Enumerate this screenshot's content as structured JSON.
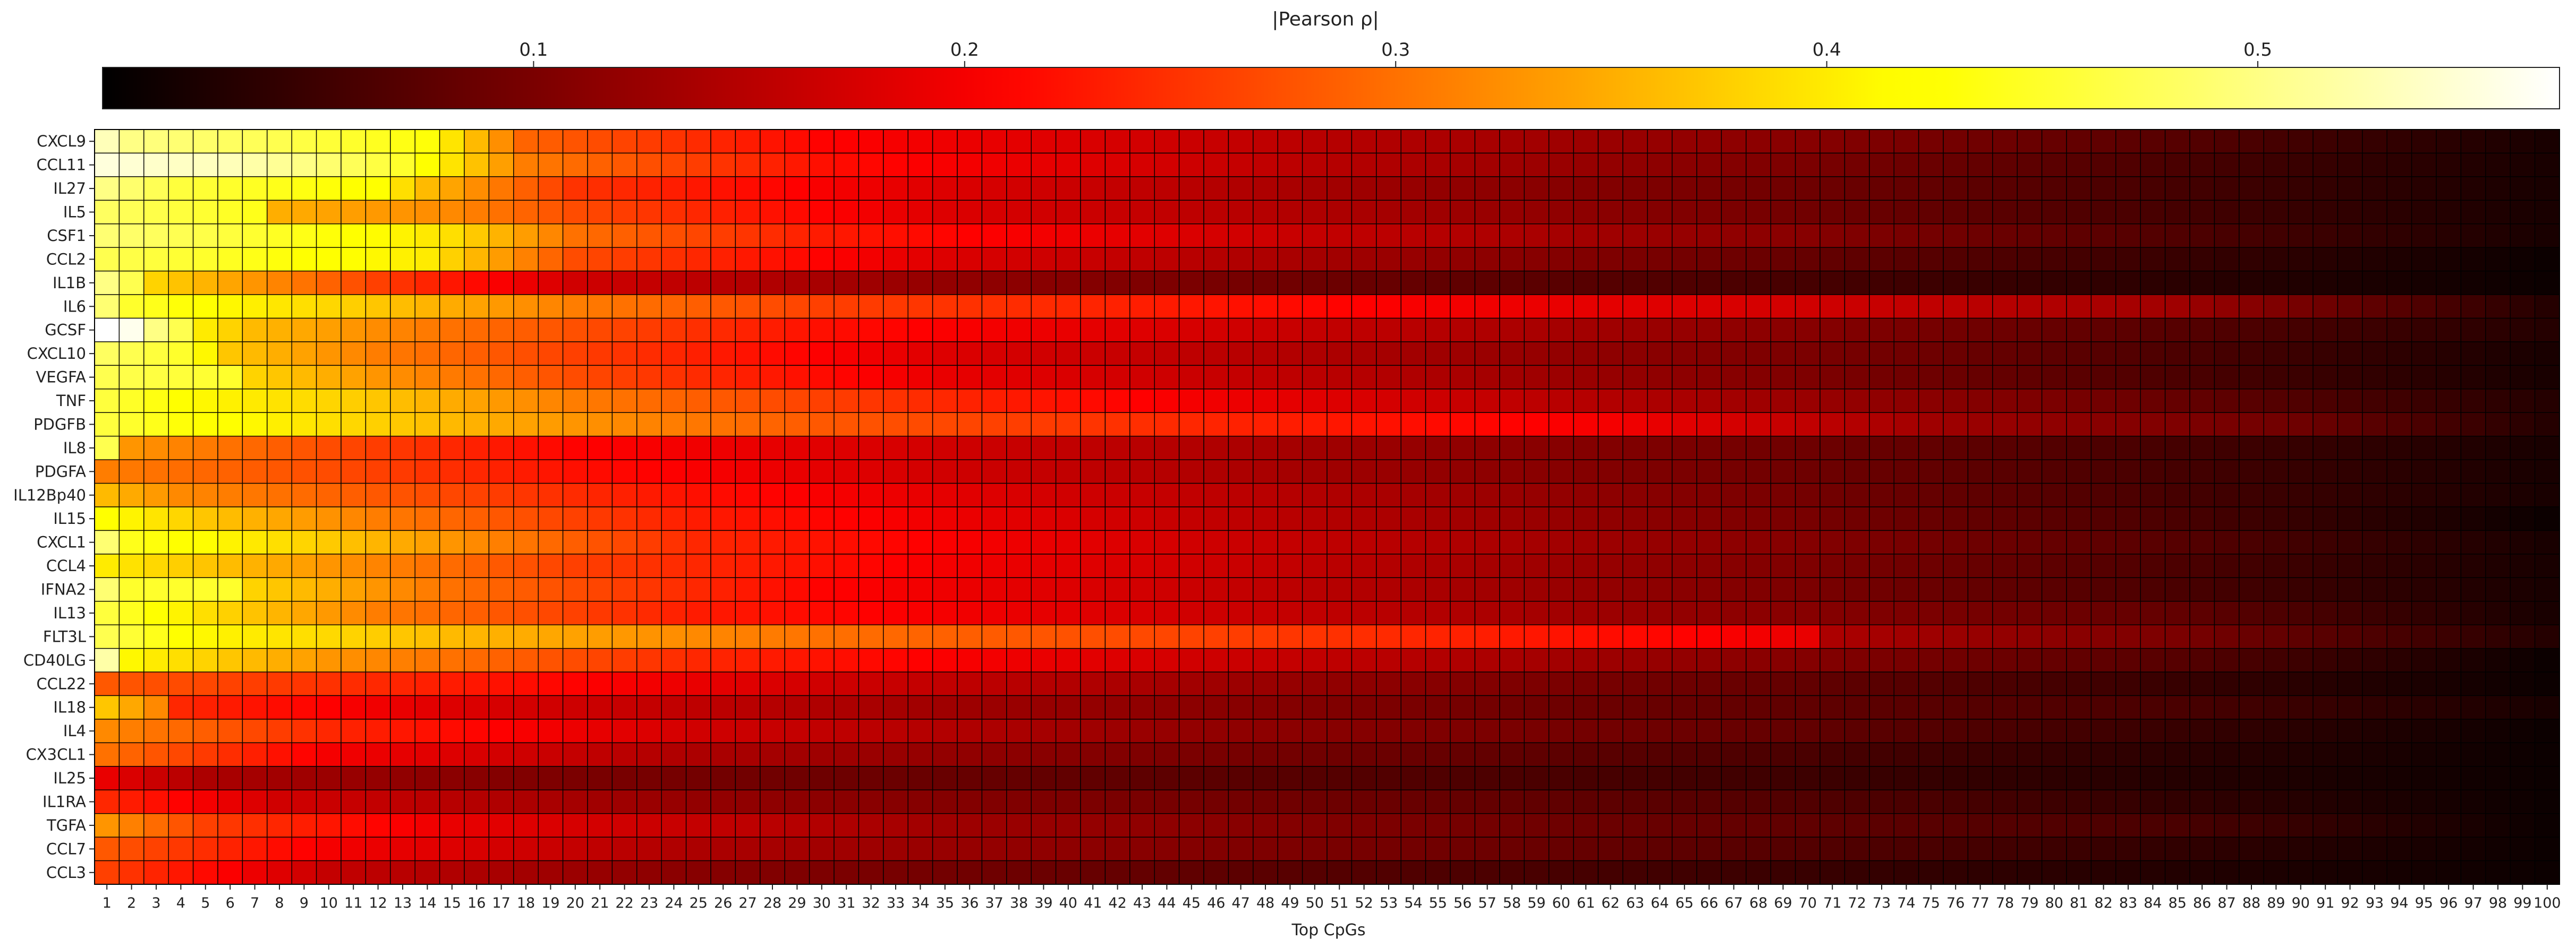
{
  "chart_data": {
    "type": "heatmap",
    "colorbar": {
      "label": "|Pearson ρ|",
      "min": 0.0,
      "max": 0.57,
      "ticks": [
        0.1,
        0.2,
        0.3,
        0.4,
        0.5
      ],
      "tick_labels": [
        "0.1",
        "0.2",
        "0.3",
        "0.4",
        "0.5"
      ],
      "location": "top",
      "colormap": "hot"
    },
    "xlabel": "Top CpGs",
    "ylabel": "",
    "x": [
      1,
      2,
      3,
      4,
      5,
      6,
      7,
      8,
      9,
      10,
      11,
      12,
      13,
      14,
      15,
      16,
      17,
      18,
      19,
      20,
      21,
      22,
      23,
      24,
      25,
      26,
      27,
      28,
      29,
      30,
      31,
      32,
      33,
      34,
      35,
      36,
      37,
      38,
      39,
      40,
      41,
      42,
      43,
      44,
      45,
      46,
      47,
      48,
      49,
      50,
      51,
      52,
      53,
      54,
      55,
      56,
      57,
      58,
      59,
      60,
      61,
      62,
      63,
      64,
      65,
      66,
      67,
      68,
      69,
      70,
      71,
      72,
      73,
      74,
      75,
      76,
      77,
      78,
      79,
      80,
      81,
      82,
      83,
      84,
      85,
      86,
      87,
      88,
      89,
      90,
      91,
      92,
      93,
      94,
      95,
      96,
      97,
      98,
      99,
      100
    ],
    "rows": [
      {
        "name": "CXCL9",
        "anchors": [
          [
            1,
            0.53
          ],
          [
            2,
            0.5
          ],
          [
            8,
            0.47
          ],
          [
            14,
            0.43
          ],
          [
            18,
            0.29
          ],
          [
            30,
            0.21
          ],
          [
            50,
            0.15
          ],
          [
            70,
            0.11
          ],
          [
            85,
            0.07
          ],
          [
            100,
            0.02
          ]
        ]
      },
      {
        "name": "CCL11",
        "anchors": [
          [
            1,
            0.55
          ],
          [
            3,
            0.54
          ],
          [
            6,
            0.53
          ],
          [
            9,
            0.5
          ],
          [
            13,
            0.45
          ],
          [
            18,
            0.31
          ],
          [
            30,
            0.22
          ],
          [
            50,
            0.15
          ],
          [
            70,
            0.1
          ],
          [
            85,
            0.06
          ],
          [
            100,
            0.02
          ]
        ]
      },
      {
        "name": "IL27",
        "anchors": [
          [
            1,
            0.5
          ],
          [
            4,
            0.46
          ],
          [
            8,
            0.44
          ],
          [
            12,
            0.42
          ],
          [
            14,
            0.36
          ],
          [
            20,
            0.25
          ],
          [
            35,
            0.18
          ],
          [
            55,
            0.12
          ],
          [
            75,
            0.08
          ],
          [
            100,
            0.02
          ]
        ]
      },
      {
        "name": "IL5",
        "anchors": [
          [
            1,
            0.48
          ],
          [
            7,
            0.44
          ],
          [
            8,
            0.35
          ],
          [
            15,
            0.32
          ],
          [
            20,
            0.27
          ],
          [
            35,
            0.18
          ],
          [
            55,
            0.13
          ],
          [
            75,
            0.08
          ],
          [
            100,
            0.02
          ]
        ]
      },
      {
        "name": "CSF1",
        "anchors": [
          [
            1,
            0.49
          ],
          [
            6,
            0.46
          ],
          [
            10,
            0.43
          ],
          [
            15,
            0.39
          ],
          [
            20,
            0.3
          ],
          [
            30,
            0.23
          ],
          [
            50,
            0.16
          ],
          [
            70,
            0.11
          ],
          [
            100,
            0.02
          ]
        ]
      },
      {
        "name": "CCL2",
        "anchors": [
          [
            1,
            0.47
          ],
          [
            5,
            0.45
          ],
          [
            10,
            0.42
          ],
          [
            14,
            0.4
          ],
          [
            20,
            0.27
          ],
          [
            35,
            0.18
          ],
          [
            55,
            0.12
          ],
          [
            75,
            0.07
          ],
          [
            100,
            0.01
          ]
        ]
      },
      {
        "name": "IL1B",
        "anchors": [
          [
            1,
            0.5
          ],
          [
            2,
            0.47
          ],
          [
            3,
            0.38
          ],
          [
            7,
            0.33
          ],
          [
            12,
            0.26
          ],
          [
            20,
            0.17
          ],
          [
            35,
            0.12
          ],
          [
            55,
            0.08
          ],
          [
            75,
            0.05
          ],
          [
            100,
            0.01
          ]
        ]
      },
      {
        "name": "IL6",
        "anchors": [
          [
            1,
            0.49
          ],
          [
            2,
            0.45
          ],
          [
            6,
            0.41
          ],
          [
            12,
            0.37
          ],
          [
            20,
            0.31
          ],
          [
            30,
            0.26
          ],
          [
            40,
            0.24
          ],
          [
            55,
            0.2
          ],
          [
            70,
            0.17
          ],
          [
            85,
            0.13
          ],
          [
            100,
            0.03
          ]
        ]
      },
      {
        "name": "GCSF",
        "anchors": [
          [
            1,
            0.57
          ],
          [
            2,
            0.56
          ],
          [
            3,
            0.5
          ],
          [
            4,
            0.47
          ],
          [
            5,
            0.4
          ],
          [
            7,
            0.36
          ],
          [
            15,
            0.3
          ],
          [
            30,
            0.22
          ],
          [
            50,
            0.16
          ],
          [
            70,
            0.11
          ],
          [
            100,
            0.03
          ]
        ]
      },
      {
        "name": "CXCL10",
        "anchors": [
          [
            1,
            0.48
          ],
          [
            4,
            0.45
          ],
          [
            6,
            0.37
          ],
          [
            12,
            0.31
          ],
          [
            20,
            0.26
          ],
          [
            35,
            0.18
          ],
          [
            55,
            0.13
          ],
          [
            75,
            0.09
          ],
          [
            100,
            0.02
          ]
        ]
      },
      {
        "name": "VEGFA",
        "anchors": [
          [
            1,
            0.47
          ],
          [
            6,
            0.45
          ],
          [
            7,
            0.38
          ],
          [
            12,
            0.33
          ],
          [
            20,
            0.27
          ],
          [
            35,
            0.19
          ],
          [
            55,
            0.14
          ],
          [
            75,
            0.09
          ],
          [
            100,
            0.02
          ]
        ]
      },
      {
        "name": "TNF",
        "anchors": [
          [
            1,
            0.46
          ],
          [
            5,
            0.41
          ],
          [
            12,
            0.37
          ],
          [
            20,
            0.31
          ],
          [
            30,
            0.26
          ],
          [
            45,
            0.2
          ],
          [
            60,
            0.15
          ],
          [
            80,
            0.1
          ],
          [
            100,
            0.03
          ]
        ]
      },
      {
        "name": "PDGFB",
        "anchors": [
          [
            1,
            0.46
          ],
          [
            4,
            0.43
          ],
          [
            10,
            0.39
          ],
          [
            18,
            0.34
          ],
          [
            30,
            0.28
          ],
          [
            45,
            0.24
          ],
          [
            62,
            0.2
          ],
          [
            75,
            0.13
          ],
          [
            90,
            0.09
          ],
          [
            100,
            0.03
          ]
        ]
      },
      {
        "name": "IL8",
        "anchors": [
          [
            1,
            0.47
          ],
          [
            2,
            0.33
          ],
          [
            10,
            0.27
          ],
          [
            20,
            0.21
          ],
          [
            35,
            0.17
          ],
          [
            55,
            0.12
          ],
          [
            75,
            0.08
          ],
          [
            100,
            0.02
          ]
        ]
      },
      {
        "name": "PDGFA",
        "anchors": [
          [
            1,
            0.31
          ],
          [
            10,
            0.27
          ],
          [
            20,
            0.22
          ],
          [
            35,
            0.17
          ],
          [
            55,
            0.12
          ],
          [
            75,
            0.08
          ],
          [
            100,
            0.02
          ]
        ]
      },
      {
        "name": "IL12Bp40",
        "anchors": [
          [
            1,
            0.36
          ],
          [
            4,
            0.32
          ],
          [
            12,
            0.28
          ],
          [
            25,
            0.22
          ],
          [
            40,
            0.17
          ],
          [
            60,
            0.12
          ],
          [
            80,
            0.07
          ],
          [
            100,
            0.02
          ]
        ]
      },
      {
        "name": "IL15",
        "anchors": [
          [
            1,
            0.42
          ],
          [
            5,
            0.37
          ],
          [
            12,
            0.31
          ],
          [
            25,
            0.23
          ],
          [
            45,
            0.16
          ],
          [
            65,
            0.11
          ],
          [
            85,
            0.06
          ],
          [
            100,
            0.01
          ]
        ]
      },
      {
        "name": "CXCL1",
        "anchors": [
          [
            1,
            0.49
          ],
          [
            2,
            0.44
          ],
          [
            8,
            0.39
          ],
          [
            15,
            0.33
          ],
          [
            25,
            0.24
          ],
          [
            45,
            0.17
          ],
          [
            65,
            0.12
          ],
          [
            85,
            0.07
          ],
          [
            100,
            0.02
          ]
        ]
      },
      {
        "name": "CCL4",
        "anchors": [
          [
            1,
            0.4
          ],
          [
            10,
            0.33
          ],
          [
            20,
            0.26
          ],
          [
            35,
            0.2
          ],
          [
            55,
            0.14
          ],
          [
            75,
            0.09
          ],
          [
            100,
            0.02
          ]
        ]
      },
      {
        "name": "IFNA2",
        "anchors": [
          [
            1,
            0.49
          ],
          [
            2,
            0.45
          ],
          [
            6,
            0.45
          ],
          [
            7,
            0.38
          ],
          [
            15,
            0.3
          ],
          [
            30,
            0.21
          ],
          [
            50,
            0.15
          ],
          [
            70,
            0.1
          ],
          [
            100,
            0.02
          ]
        ]
      },
      {
        "name": "IL13",
        "anchors": [
          [
            1,
            0.46
          ],
          [
            5,
            0.39
          ],
          [
            12,
            0.31
          ],
          [
            25,
            0.23
          ],
          [
            45,
            0.17
          ],
          [
            65,
            0.12
          ],
          [
            85,
            0.08
          ],
          [
            100,
            0.02
          ]
        ]
      },
      {
        "name": "FLT3L",
        "anchors": [
          [
            1,
            0.47
          ],
          [
            5,
            0.41
          ],
          [
            15,
            0.36
          ],
          [
            30,
            0.3
          ],
          [
            50,
            0.25
          ],
          [
            65,
            0.21
          ],
          [
            70,
            0.19
          ],
          [
            71,
            0.14
          ],
          [
            85,
            0.1
          ],
          [
            100,
            0.03
          ]
        ]
      },
      {
        "name": "CD40LG",
        "anchors": [
          [
            1,
            0.52
          ],
          [
            2,
            0.41
          ],
          [
            10,
            0.33
          ],
          [
            25,
            0.24
          ],
          [
            45,
            0.17
          ],
          [
            65,
            0.12
          ],
          [
            85,
            0.07
          ],
          [
            100,
            0.01
          ]
        ]
      },
      {
        "name": "CCL22",
        "anchors": [
          [
            1,
            0.28
          ],
          [
            15,
            0.23
          ],
          [
            30,
            0.17
          ],
          [
            50,
            0.12
          ],
          [
            70,
            0.08
          ],
          [
            100,
            0.01
          ]
        ]
      },
      {
        "name": "IL18",
        "anchors": [
          [
            1,
            0.37
          ],
          [
            3,
            0.32
          ],
          [
            4,
            0.24
          ],
          [
            15,
            0.18
          ],
          [
            35,
            0.13
          ],
          [
            60,
            0.09
          ],
          [
            85,
            0.06
          ],
          [
            100,
            0.02
          ]
        ]
      },
      {
        "name": "IL4",
        "anchors": [
          [
            1,
            0.32
          ],
          [
            10,
            0.24
          ],
          [
            25,
            0.17
          ],
          [
            45,
            0.12
          ],
          [
            70,
            0.08
          ],
          [
            100,
            0.01
          ]
        ]
      },
      {
        "name": "CX3CL1",
        "anchors": [
          [
            1,
            0.3
          ],
          [
            10,
            0.2
          ],
          [
            25,
            0.14
          ],
          [
            45,
            0.1
          ],
          [
            70,
            0.06
          ],
          [
            100,
            0.01
          ]
        ]
      },
      {
        "name": "IL25",
        "anchors": [
          [
            1,
            0.19
          ],
          [
            5,
            0.14
          ],
          [
            20,
            0.1
          ],
          [
            40,
            0.08
          ],
          [
            70,
            0.05
          ],
          [
            100,
            0.01
          ]
        ]
      },
      {
        "name": "IL1RA",
        "anchors": [
          [
            1,
            0.24
          ],
          [
            8,
            0.17
          ],
          [
            25,
            0.12
          ],
          [
            50,
            0.09
          ],
          [
            75,
            0.06
          ],
          [
            100,
            0.01
          ]
        ]
      },
      {
        "name": "TGFA",
        "anchors": [
          [
            1,
            0.33
          ],
          [
            5,
            0.26
          ],
          [
            15,
            0.19
          ],
          [
            35,
            0.13
          ],
          [
            60,
            0.09
          ],
          [
            85,
            0.06
          ],
          [
            100,
            0.01
          ]
        ]
      },
      {
        "name": "CCL7",
        "anchors": [
          [
            1,
            0.28
          ],
          [
            10,
            0.2
          ],
          [
            25,
            0.14
          ],
          [
            50,
            0.1
          ],
          [
            75,
            0.06
          ],
          [
            100,
            0.01
          ]
        ]
      },
      {
        "name": "CCL3",
        "anchors": [
          [
            1,
            0.26
          ],
          [
            10,
            0.16
          ],
          [
            25,
            0.11
          ],
          [
            50,
            0.07
          ],
          [
            75,
            0.04
          ],
          [
            100,
            0.01
          ]
        ]
      }
    ]
  }
}
